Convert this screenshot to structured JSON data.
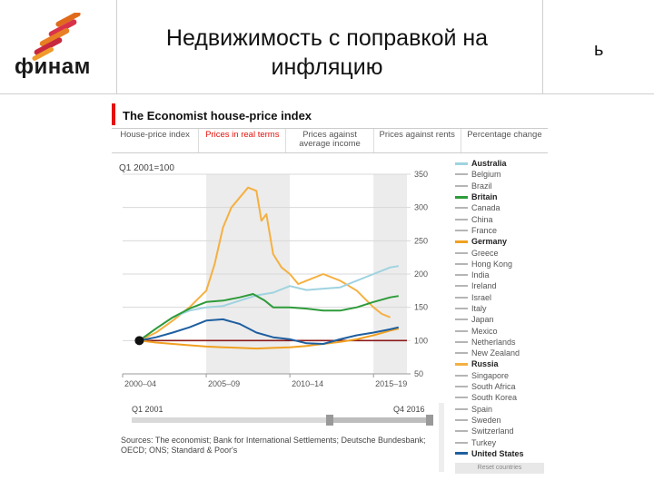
{
  "slide": {
    "logo_text": "финам",
    "title": "Недвижимость с поправкой на инфляцию",
    "title_right": "ь"
  },
  "figure": {
    "header": "The Economist house-price index",
    "tabs": [
      {
        "label": "House-price index",
        "active": false
      },
      {
        "label": "Prices in real terms",
        "active": true
      },
      {
        "label": "Prices against average income",
        "active": false
      },
      {
        "label": "Prices against rents",
        "active": false
      },
      {
        "label": "Percentage change",
        "active": false
      }
    ],
    "base_label": "Q1 2001=100",
    "timeline_start": "Q1 2001",
    "timeline_end": "Q4 2016",
    "source": "Sources: The economist; Bank for International Settlements; Deutsche Bundesbank; OECD; ONS; Standard & Poor's",
    "reset_label": "Reset countries"
  },
  "chart_data": {
    "type": "line",
    "title": "The Economist house-price index",
    "ylabel": "Q1 2001=100",
    "ylim": [
      50,
      350
    ],
    "xlim": [
      2000,
      2017
    ],
    "yticks": [
      50,
      100,
      150,
      200,
      250,
      300,
      350
    ],
    "xtick_labels": [
      "2000–04",
      "2005–09",
      "2010–14",
      "2015–19"
    ],
    "xtick_positions": [
      2000,
      2005,
      2010,
      2015
    ],
    "shaded_ranges": [
      [
        2005,
        2010
      ],
      [
        2015,
        2017
      ]
    ],
    "baseline": 100,
    "legend_position": "right",
    "legend": [
      {
        "name": "Australia",
        "color": "#9fd3e0"
      },
      {
        "name": "Belgium",
        "color": "#b5b5b5"
      },
      {
        "name": "Brazil",
        "color": "#b5b5b5"
      },
      {
        "name": "Britain",
        "color": "#2e9b3a"
      },
      {
        "name": "Canada",
        "color": "#b5b5b5"
      },
      {
        "name": "China",
        "color": "#b5b5b5"
      },
      {
        "name": "France",
        "color": "#b5b5b5"
      },
      {
        "name": "Germany",
        "color": "#f0a020"
      },
      {
        "name": "Greece",
        "color": "#b5b5b5"
      },
      {
        "name": "Hong Kong",
        "color": "#b5b5b5"
      },
      {
        "name": "India",
        "color": "#b5b5b5"
      },
      {
        "name": "Ireland",
        "color": "#b5b5b5"
      },
      {
        "name": "Israel",
        "color": "#b5b5b5"
      },
      {
        "name": "Italy",
        "color": "#b5b5b5"
      },
      {
        "name": "Japan",
        "color": "#b5b5b5"
      },
      {
        "name": "Mexico",
        "color": "#b5b5b5"
      },
      {
        "name": "Netherlands",
        "color": "#b5b5b5"
      },
      {
        "name": "New Zealand",
        "color": "#b5b5b5"
      },
      {
        "name": "Russia",
        "color": "#f5b041"
      },
      {
        "name": "Singapore",
        "color": "#b5b5b5"
      },
      {
        "name": "South Africa",
        "color": "#b5b5b5"
      },
      {
        "name": "South Korea",
        "color": "#b5b5b5"
      },
      {
        "name": "Spain",
        "color": "#b5b5b5"
      },
      {
        "name": "Sweden",
        "color": "#b5b5b5"
      },
      {
        "name": "Switzerland",
        "color": "#b5b5b5"
      },
      {
        "name": "Turkey",
        "color": "#b5b5b5"
      },
      {
        "name": "United States",
        "color": "#1f5fa0"
      }
    ],
    "series": [
      {
        "name": "Russia",
        "color": "#f5b041",
        "x": [
          2001,
          2002,
          2003,
          2004,
          2005,
          2005.5,
          2006,
          2006.5,
          2007,
          2007.5,
          2008,
          2008.3,
          2008.6,
          2009,
          2009.5,
          2010,
          2010.5,
          2011,
          2012,
          2013,
          2014,
          2015,
          2015.5,
          2016
        ],
        "y": [
          100,
          112,
          130,
          150,
          175,
          215,
          270,
          300,
          315,
          330,
          325,
          280,
          290,
          230,
          210,
          200,
          185,
          190,
          200,
          190,
          175,
          150,
          140,
          135
        ]
      },
      {
        "name": "Australia",
        "color": "#9fd3e0",
        "x": [
          2001,
          2002,
          2003,
          2004,
          2005,
          2006,
          2007,
          2008,
          2009,
          2010,
          2011,
          2012,
          2013,
          2014,
          2015,
          2016,
          2016.5
        ],
        "y": [
          100,
          118,
          135,
          145,
          150,
          152,
          160,
          168,
          172,
          182,
          176,
          178,
          180,
          190,
          200,
          210,
          212
        ]
      },
      {
        "name": "Britain",
        "color": "#2e9b3a",
        "x": [
          2001,
          2002,
          2003,
          2004,
          2005,
          2006,
          2007,
          2007.8,
          2008.5,
          2009,
          2010,
          2011,
          2012,
          2013,
          2014,
          2015,
          2016,
          2016.5
        ],
        "y": [
          100,
          118,
          135,
          148,
          158,
          160,
          165,
          170,
          160,
          150,
          150,
          148,
          145,
          145,
          150,
          158,
          165,
          167
        ]
      },
      {
        "name": "Germany",
        "color": "#f0a020",
        "x": [
          2001,
          2002,
          2003,
          2004,
          2005,
          2006,
          2007,
          2008,
          2009,
          2010,
          2011,
          2012,
          2013,
          2014,
          2015,
          2016,
          2016.5
        ],
        "y": [
          100,
          97,
          95,
          93,
          91,
          90,
          89,
          88,
          89,
          90,
          92,
          95,
          98,
          102,
          108,
          115,
          118
        ]
      },
      {
        "name": "United States",
        "color": "#1f5fa0",
        "x": [
          2001,
          2002,
          2003,
          2004,
          2005,
          2006,
          2007,
          2008,
          2009,
          2010,
          2011,
          2012,
          2013,
          2014,
          2015,
          2016,
          2016.5
        ],
        "y": [
          100,
          105,
          112,
          120,
          130,
          132,
          125,
          112,
          105,
          102,
          96,
          95,
          102,
          108,
          112,
          117,
          120
        ]
      }
    ]
  }
}
